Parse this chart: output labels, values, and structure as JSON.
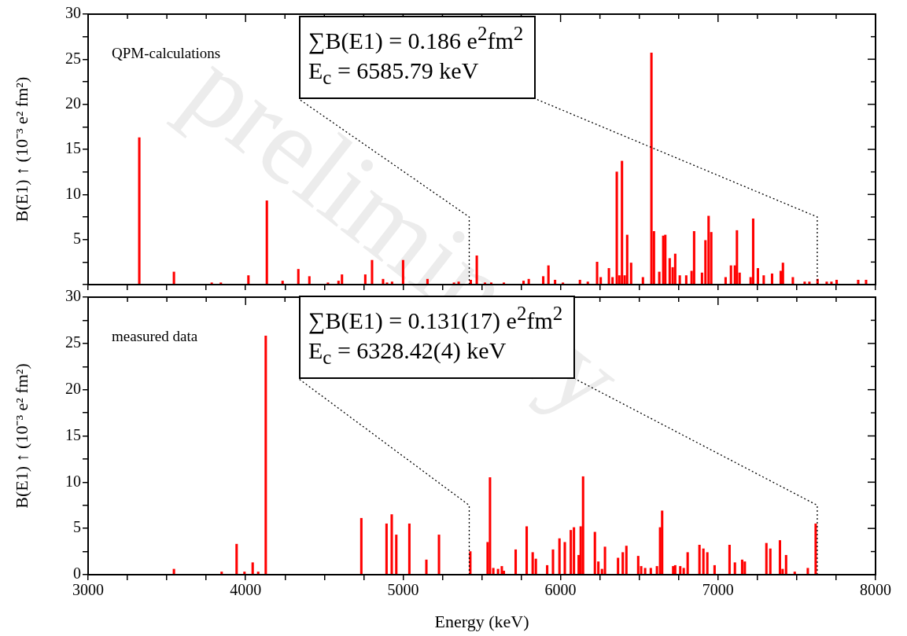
{
  "chart_data": [
    {
      "type": "bar",
      "title": "QPM-calculations",
      "subtitle": "preliminary",
      "ylabel": "B(E1) ↑ (10⁻³ e² fm²)",
      "annotations": [
        "∑B(E1) = 0.186 e$^{2}$fm$^{2}$",
        "E$_{c}$ = 6585.79 keV"
      ],
      "x": [
        3325,
        3545,
        3785,
        3843,
        4018,
        4135,
        4235,
        4335,
        4405,
        4523,
        4590,
        4612,
        4760,
        4803,
        4873,
        4898,
        4930,
        5000,
        5155,
        5323,
        5353,
        5430,
        5468,
        5520,
        5560,
        5640,
        5765,
        5798,
        5890,
        5923,
        5965,
        6015,
        6123,
        6173,
        6232,
        6255,
        6307,
        6330,
        6357,
        6373,
        6390,
        6407,
        6423,
        6448,
        6523,
        6577,
        6593,
        6627,
        6652,
        6665,
        6693,
        6712,
        6728,
        6757,
        6798,
        6832,
        6848,
        6898,
        6920,
        6940,
        6957,
        7048,
        7082,
        7107,
        7120,
        7137,
        7207,
        7223,
        7253,
        7290,
        7343,
        7398,
        7412,
        7475,
        7550,
        7580,
        7632,
        7690,
        7720,
        7753,
        7890,
        7940
      ],
      "values": [
        16.3,
        1.4,
        0.2,
        0.2,
        1.0,
        9.3,
        0.4,
        1.7,
        0.9,
        0.2,
        0.4,
        1.1,
        1.1,
        2.7,
        0.6,
        0.2,
        0.3,
        2.7,
        0.6,
        0.2,
        0.3,
        0.5,
        3.2,
        0.2,
        0.2,
        0.2,
        0.4,
        0.6,
        0.9,
        2.1,
        0.5,
        0.2,
        0.5,
        0.3,
        2.5,
        0.8,
        1.8,
        0.8,
        12.5,
        1.0,
        13.7,
        1.0,
        5.5,
        2.4,
        0.8,
        25.7,
        5.9,
        1.4,
        5.4,
        5.5,
        2.9,
        1.9,
        3.4,
        1.0,
        1.0,
        1.5,
        5.9,
        1.3,
        4.9,
        7.6,
        5.8,
        0.8,
        2.1,
        2.1,
        6.0,
        1.3,
        0.8,
        7.3,
        1.8,
        1.0,
        1.2,
        1.5,
        2.4,
        0.8,
        0.3,
        0.3,
        0.6,
        0.3,
        0.3,
        0.5,
        0.5,
        0.5
      ],
      "color": "#ff0000",
      "xlim": [
        3000,
        8000
      ],
      "xticks": [
        3000,
        {
          "value": 3250,
          "label": null
        },
        {
          "value": 3500,
          "label": null
        },
        {
          "value": 3750,
          "label": null
        },
        4000,
        {
          "value": 4250,
          "label": null
        },
        {
          "value": 4500,
          "label": null
        },
        {
          "value": 4750,
          "label": null
        },
        5000,
        {
          "value": 5250,
          "label": null
        },
        {
          "value": 5500,
          "label": null
        },
        {
          "value": 5750,
          "label": null
        },
        6000,
        {
          "value": 6250,
          "label": null
        },
        {
          "value": 6500,
          "label": null
        },
        {
          "value": 6750,
          "label": null
        },
        7000,
        {
          "value": 7250,
          "label": null
        },
        {
          "value": 7500,
          "label": null
        },
        {
          "value": 7750,
          "label": null
        },
        8000
      ],
      "ylim": [
        0,
        30
      ],
      "yticks": [
        {
          "value": 0,
          "label": null
        },
        {
          "value": 2.5,
          "label": null
        },
        5,
        {
          "value": 7.5,
          "label": null
        },
        10,
        {
          "value": 12.5,
          "label": null
        },
        15,
        {
          "value": 17.5,
          "label": null
        },
        20,
        {
          "value": 22.5,
          "label": null
        },
        25,
        {
          "value": 27.5,
          "label": null
        },
        30
      ],
      "tick_labels": "y",
      "grid": false,
      "legend": false,
      "ref_lines": [
        {
          "axis": "x",
          "value": 5420,
          "line_style": "dotted",
          "color": "#000000"
        },
        {
          "axis": "x",
          "value": 7630,
          "line_style": "dotted",
          "color": "#000000"
        }
      ]
    },
    {
      "type": "bar",
      "title": "measured data",
      "xlabel": "Energy (keV)",
      "ylabel": "B(E1) ↑ (10⁻³ e² fm²)",
      "annotations": [
        "∑B(E1) = 0.131(17) e$^{2}$fm$^{2}$",
        "E$_{c}$ = 6328.42(4) keV"
      ],
      "x": [
        3545,
        3848,
        3943,
        3993,
        4045,
        4080,
        4128,
        4735,
        4895,
        4928,
        4957,
        5040,
        5148,
        5228,
        5427,
        5537,
        5552,
        5573,
        5603,
        5627,
        5640,
        5715,
        5785,
        5823,
        5843,
        5915,
        5952,
        5993,
        6027,
        6065,
        6085,
        6115,
        6128,
        6143,
        6218,
        6240,
        6263,
        6282,
        6365,
        6395,
        6418,
        6493,
        6512,
        6537,
        6573,
        6612,
        6632,
        6645,
        6715,
        6728,
        6760,
        6782,
        6807,
        6882,
        6907,
        6932,
        6978,
        7073,
        7107,
        7153,
        7170,
        7307,
        7332,
        7393,
        7410,
        7432,
        7487,
        7570,
        7620
      ],
      "values": [
        0.6,
        0.3,
        3.3,
        0.3,
        1.3,
        0.3,
        25.8,
        6.1,
        5.5,
        6.5,
        4.3,
        5.5,
        1.6,
        4.3,
        2.5,
        3.5,
        10.5,
        0.7,
        0.6,
        0.9,
        0.4,
        2.7,
        5.2,
        2.4,
        1.7,
        1.0,
        2.7,
        3.9,
        3.5,
        4.8,
        5.1,
        2.1,
        5.2,
        10.6,
        4.6,
        1.4,
        0.6,
        3.0,
        1.8,
        2.4,
        3.1,
        2.0,
        0.9,
        0.7,
        0.7,
        0.9,
        5.1,
        6.9,
        0.9,
        1.0,
        0.9,
        0.7,
        2.4,
        3.2,
        2.8,
        2.4,
        1.0,
        3.2,
        1.3,
        1.6,
        1.4,
        3.4,
        2.8,
        3.7,
        0.6,
        2.1,
        0.3,
        0.7,
        5.5
      ],
      "color": "#ff0000",
      "xlim": [
        3000,
        8000
      ],
      "xticks": [
        3000,
        {
          "value": 3250,
          "label": null
        },
        {
          "value": 3500,
          "label": null
        },
        {
          "value": 3750,
          "label": null
        },
        4000,
        {
          "value": 4250,
          "label": null
        },
        {
          "value": 4500,
          "label": null
        },
        {
          "value": 4750,
          "label": null
        },
        5000,
        {
          "value": 5250,
          "label": null
        },
        {
          "value": 5500,
          "label": null
        },
        {
          "value": 5750,
          "label": null
        },
        6000,
        {
          "value": 6250,
          "label": null
        },
        {
          "value": 6500,
          "label": null
        },
        {
          "value": 6750,
          "label": null
        },
        7000,
        {
          "value": 7250,
          "label": null
        },
        {
          "value": 7500,
          "label": null
        },
        {
          "value": 7750,
          "label": null
        },
        8000
      ],
      "ylim": [
        0,
        30
      ],
      "yticks": [
        0,
        {
          "value": 2.5,
          "label": null
        },
        5,
        {
          "value": 7.5,
          "label": null
        },
        10,
        {
          "value": 12.5,
          "label": null
        },
        15,
        {
          "value": 17.5,
          "label": null
        },
        20,
        {
          "value": 22.5,
          "label": null
        },
        25,
        {
          "value": 27.5,
          "label": null
        },
        30
      ],
      "grid": false,
      "legend": false,
      "ref_lines": [
        {
          "axis": "x",
          "value": 5420,
          "line_style": "dotted",
          "color": "#000000"
        },
        {
          "axis": "x",
          "value": 7630,
          "line_style": "dotted",
          "color": "#000000"
        }
      ]
    }
  ]
}
